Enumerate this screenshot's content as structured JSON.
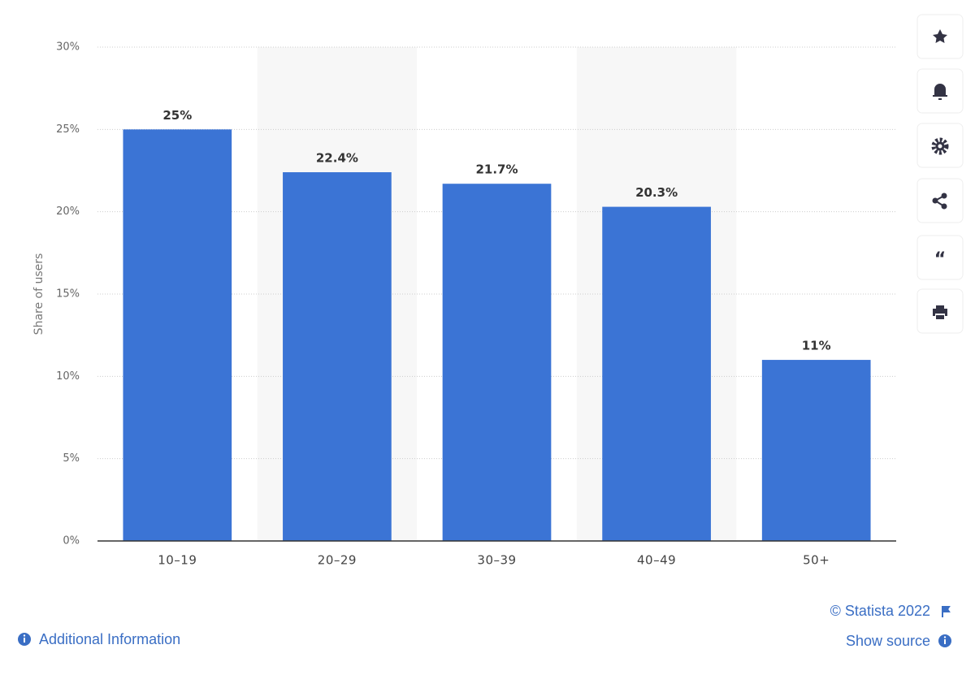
{
  "chart_data": {
    "type": "bar",
    "y_label": "Share of users",
    "categories": [
      "10–19",
      "20–29",
      "30–39",
      "40–49",
      "50+"
    ],
    "values": [
      25,
      22.4,
      21.7,
      20.3,
      11
    ],
    "value_labels": [
      "25%",
      "22.4%",
      "21.7%",
      "20.3%",
      "11%"
    ],
    "color": "#3b74d5",
    "ylim": [
      0,
      30
    ],
    "yticks": [
      {
        "value": 0,
        "label": "0%"
      },
      {
        "value": 5,
        "label": "5%"
      },
      {
        "value": 10,
        "label": "10%"
      },
      {
        "value": 15,
        "label": "15%"
      },
      {
        "value": 20,
        "label": "20%"
      },
      {
        "value": 25,
        "label": "25%"
      },
      {
        "value": 30,
        "label": "30%"
      }
    ],
    "grid": true
  },
  "footer": {
    "copyright": "© Statista 2022",
    "additional_info": "Additional Information",
    "show_source": "Show source"
  }
}
